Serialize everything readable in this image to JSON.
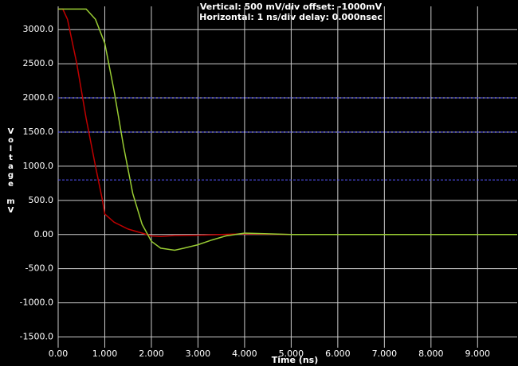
{
  "chart_data": {
    "type": "line",
    "title": "Vertical: 500 mV/div  offset: -1000mV",
    "subtitle": "Horizontal: 1 ns/div  delay: 0.000nsec",
    "x_label": "Time  (ns)",
    "y_label": "Voltage mV",
    "xlim": [
      0,
      9.85
    ],
    "ylim": [
      -1750,
      3340
    ],
    "xticks": [
      {
        "value": 0,
        "label": "0.00"
      },
      {
        "value": 1,
        "label": "1.000"
      },
      {
        "value": 2,
        "label": "2.000"
      },
      {
        "value": 3,
        "label": "3.000"
      },
      {
        "value": 4,
        "label": "4.000"
      },
      {
        "value": 5,
        "label": "5.000"
      },
      {
        "value": 6,
        "label": "6.000"
      },
      {
        "value": 7,
        "label": "7.000"
      },
      {
        "value": 8,
        "label": "8.000"
      },
      {
        "value": 9,
        "label": "9.000"
      }
    ],
    "yticks": [
      {
        "value": 3000,
        "label": "3000.0"
      },
      {
        "value": 2500,
        "label": "2500.0"
      },
      {
        "value": 2000,
        "label": "2000.0"
      },
      {
        "value": 1500,
        "label": "1500.0"
      },
      {
        "value": 1000,
        "label": "1000.0"
      },
      {
        "value": 500,
        "label": "500.0"
      },
      {
        "value": 0,
        "label": "0.00"
      },
      {
        "value": -500,
        "label": "-500.0"
      },
      {
        "value": -1000,
        "label": "-1000.0"
      },
      {
        "value": -1500,
        "label": "-1500.0"
      }
    ],
    "grid": true,
    "reference_lines": [
      2000,
      1500,
      800
    ],
    "reference_color": "#5555ff",
    "series": [
      {
        "color": "#c00000",
        "x": [
          0,
          0.1,
          0.2,
          0.4,
          0.6,
          0.8,
          0.95,
          1.0,
          1.2,
          1.5,
          1.8,
          2.0,
          2.2,
          2.5,
          3.0,
          3.5,
          4.0,
          5.0,
          9.85
        ],
        "values": [
          3300,
          3300,
          3150,
          2500,
          1700,
          1000,
          500,
          300,
          180,
          80,
          20,
          -20,
          -30,
          -15,
          -10,
          0,
          10,
          0,
          0
        ]
      },
      {
        "color": "#99cc33",
        "x": [
          0,
          0.6,
          0.8,
          1.0,
          1.2,
          1.4,
          1.6,
          1.8,
          2.0,
          2.2,
          2.5,
          2.7,
          3.0,
          3.3,
          3.6,
          4.0,
          4.5,
          5.0,
          9.85
        ],
        "values": [
          3300,
          3300,
          3150,
          2800,
          2100,
          1300,
          600,
          150,
          -100,
          -200,
          -230,
          -200,
          -150,
          -80,
          -20,
          20,
          10,
          0,
          0
        ]
      }
    ]
  }
}
